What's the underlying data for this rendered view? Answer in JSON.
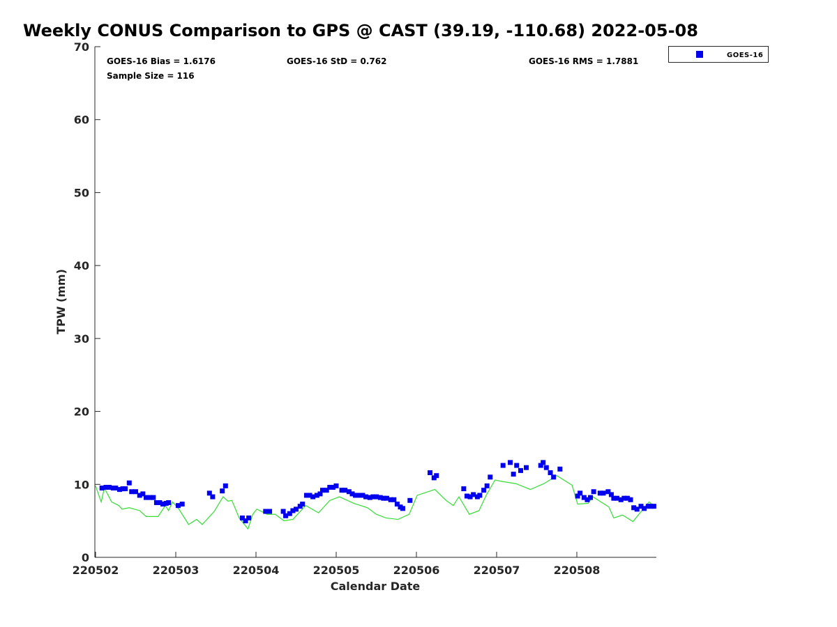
{
  "chart_data": {
    "type": "scatter",
    "title": "Weekly CONUS Comparison to GPS @ CAST (39.19, -110.68) 2022-05-08",
    "xlabel": "Calendar Date",
    "ylabel": "TPW (mm)",
    "x_units": "days since 220502",
    "xlim": [
      0,
      7
    ],
    "ylim": [
      0,
      70
    ],
    "yticks": [
      0,
      10,
      20,
      30,
      40,
      50,
      60,
      70
    ],
    "xticks": [
      0,
      1,
      2,
      3,
      4,
      5,
      6
    ],
    "xtick_labels": [
      "220502",
      "220503",
      "220504",
      "220505",
      "220506",
      "220507",
      "220508"
    ],
    "grid": false,
    "legend": {
      "placement": "top-right-outside",
      "entries": [
        "GOES-16"
      ]
    },
    "annotations": {
      "bias": "GOES-16 Bias = 1.6176",
      "std": "GOES-16 StD = 0.762",
      "rms": "GOES-16 RMS = 1.7881",
      "sample": "Sample Size = 116"
    },
    "colors": {
      "goes": "#0000ee",
      "gps": "#33dd33"
    },
    "series": [
      {
        "name": "GOES-16",
        "kind": "markers",
        "points": [
          [
            0.08,
            9.5
          ],
          [
            0.13,
            9.6
          ],
          [
            0.17,
            9.6
          ],
          [
            0.22,
            9.5
          ],
          [
            0.25,
            9.5
          ],
          [
            0.3,
            9.3
          ],
          [
            0.34,
            9.4
          ],
          [
            0.37,
            9.4
          ],
          [
            0.42,
            10.2
          ],
          [
            0.45,
            9.0
          ],
          [
            0.5,
            9.0
          ],
          [
            0.55,
            8.5
          ],
          [
            0.59,
            8.7
          ],
          [
            0.63,
            8.2
          ],
          [
            0.68,
            8.2
          ],
          [
            0.72,
            8.2
          ],
          [
            0.76,
            7.5
          ],
          [
            0.8,
            7.5
          ],
          [
            0.84,
            7.3
          ],
          [
            0.88,
            7.4
          ],
          [
            0.91,
            7.5
          ],
          [
            1.03,
            7.1
          ],
          [
            1.08,
            7.3
          ],
          [
            1.42,
            8.8
          ],
          [
            1.46,
            8.3
          ],
          [
            1.58,
            9.1
          ],
          [
            1.62,
            9.8
          ],
          [
            1.83,
            5.4
          ],
          [
            1.87,
            5.0
          ],
          [
            1.91,
            5.4
          ],
          [
            2.12,
            6.3
          ],
          [
            2.17,
            6.3
          ],
          [
            2.34,
            6.3
          ],
          [
            2.37,
            5.7
          ],
          [
            2.42,
            6.0
          ],
          [
            2.46,
            6.4
          ],
          [
            2.5,
            6.6
          ],
          [
            2.55,
            7.0
          ],
          [
            2.58,
            7.3
          ],
          [
            2.63,
            8.5
          ],
          [
            2.67,
            8.5
          ],
          [
            2.71,
            8.3
          ],
          [
            2.76,
            8.5
          ],
          [
            2.8,
            8.7
          ],
          [
            2.83,
            9.2
          ],
          [
            2.88,
            9.2
          ],
          [
            2.92,
            9.6
          ],
          [
            2.96,
            9.6
          ],
          [
            3.0,
            9.8
          ],
          [
            3.07,
            9.2
          ],
          [
            3.11,
            9.2
          ],
          [
            3.16,
            9.0
          ],
          [
            3.2,
            8.7
          ],
          [
            3.24,
            8.5
          ],
          [
            3.29,
            8.5
          ],
          [
            3.33,
            8.5
          ],
          [
            3.37,
            8.3
          ],
          [
            3.42,
            8.2
          ],
          [
            3.46,
            8.3
          ],
          [
            3.5,
            8.3
          ],
          [
            3.55,
            8.2
          ],
          [
            3.59,
            8.1
          ],
          [
            3.63,
            8.1
          ],
          [
            3.68,
            7.9
          ],
          [
            3.72,
            7.9
          ],
          [
            3.76,
            7.3
          ],
          [
            3.8,
            6.9
          ],
          [
            3.83,
            6.7
          ],
          [
            3.92,
            7.8
          ],
          [
            4.17,
            11.6
          ],
          [
            4.22,
            10.9
          ],
          [
            4.25,
            11.2
          ],
          [
            4.59,
            9.4
          ],
          [
            4.63,
            8.4
          ],
          [
            4.67,
            8.3
          ],
          [
            4.71,
            8.6
          ],
          [
            4.76,
            8.3
          ],
          [
            4.79,
            8.5
          ],
          [
            4.84,
            9.2
          ],
          [
            4.88,
            9.8
          ],
          [
            4.92,
            11.0
          ],
          [
            5.08,
            12.6
          ],
          [
            5.17,
            13.0
          ],
          [
            5.21,
            11.4
          ],
          [
            5.25,
            12.6
          ],
          [
            5.3,
            11.9
          ],
          [
            5.37,
            12.3
          ],
          [
            5.55,
            12.6
          ],
          [
            5.58,
            13.0
          ],
          [
            5.62,
            12.3
          ],
          [
            5.67,
            11.6
          ],
          [
            5.71,
            11.0
          ],
          [
            5.79,
            12.1
          ],
          [
            6.01,
            8.4
          ],
          [
            6.04,
            8.8
          ],
          [
            6.09,
            8.2
          ],
          [
            6.13,
            7.9
          ],
          [
            6.17,
            8.2
          ],
          [
            6.21,
            9.0
          ],
          [
            6.29,
            8.8
          ],
          [
            6.33,
            8.8
          ],
          [
            6.39,
            9.0
          ],
          [
            6.43,
            8.6
          ],
          [
            6.46,
            8.1
          ],
          [
            6.5,
            8.1
          ],
          [
            6.55,
            7.9
          ],
          [
            6.59,
            8.1
          ],
          [
            6.63,
            8.1
          ],
          [
            6.67,
            7.9
          ],
          [
            6.71,
            6.8
          ],
          [
            6.75,
            6.6
          ],
          [
            6.8,
            7.0
          ],
          [
            6.84,
            6.7
          ],
          [
            6.89,
            7.0
          ],
          [
            6.92,
            7.0
          ],
          [
            6.96,
            7.0
          ]
        ]
      },
      {
        "name": "GPS",
        "kind": "line",
        "points": [
          [
            0.0,
            9.8
          ],
          [
            0.07,
            7.6
          ],
          [
            0.11,
            9.5
          ],
          [
            0.2,
            7.6
          ],
          [
            0.29,
            7.1
          ],
          [
            0.33,
            6.6
          ],
          [
            0.42,
            6.8
          ],
          [
            0.55,
            6.4
          ],
          [
            0.63,
            5.6
          ],
          [
            0.78,
            5.6
          ],
          [
            0.87,
            7.1
          ],
          [
            0.91,
            6.4
          ],
          [
            0.96,
            7.6
          ],
          [
            1.04,
            6.6
          ],
          [
            1.16,
            4.5
          ],
          [
            1.26,
            5.2
          ],
          [
            1.33,
            4.5
          ],
          [
            1.48,
            6.3
          ],
          [
            1.59,
            8.3
          ],
          [
            1.65,
            7.7
          ],
          [
            1.7,
            7.8
          ],
          [
            1.79,
            5.4
          ],
          [
            1.9,
            3.9
          ],
          [
            1.96,
            5.9
          ],
          [
            2.01,
            6.6
          ],
          [
            2.14,
            5.9
          ],
          [
            2.24,
            5.9
          ],
          [
            2.35,
            5.0
          ],
          [
            2.46,
            5.2
          ],
          [
            2.62,
            7.1
          ],
          [
            2.78,
            6.1
          ],
          [
            2.92,
            7.8
          ],
          [
            3.04,
            8.3
          ],
          [
            3.22,
            7.4
          ],
          [
            3.39,
            6.8
          ],
          [
            3.5,
            5.9
          ],
          [
            3.62,
            5.4
          ],
          [
            3.77,
            5.2
          ],
          [
            3.91,
            5.9
          ],
          [
            4.01,
            8.5
          ],
          [
            4.23,
            9.3
          ],
          [
            4.37,
            7.8
          ],
          [
            4.46,
            7.1
          ],
          [
            4.53,
            8.3
          ],
          [
            4.66,
            5.9
          ],
          [
            4.78,
            6.4
          ],
          [
            4.87,
            8.5
          ],
          [
            4.98,
            10.6
          ],
          [
            5.07,
            10.4
          ],
          [
            5.24,
            10.1
          ],
          [
            5.42,
            9.3
          ],
          [
            5.59,
            10.1
          ],
          [
            5.75,
            11.2
          ],
          [
            5.94,
            9.9
          ],
          [
            6.01,
            7.3
          ],
          [
            6.14,
            7.4
          ],
          [
            6.2,
            8.3
          ],
          [
            6.4,
            6.9
          ],
          [
            6.46,
            5.4
          ],
          [
            6.57,
            5.8
          ],
          [
            6.7,
            4.9
          ],
          [
            6.9,
            7.6
          ],
          [
            6.98,
            6.9
          ]
        ]
      }
    ]
  }
}
